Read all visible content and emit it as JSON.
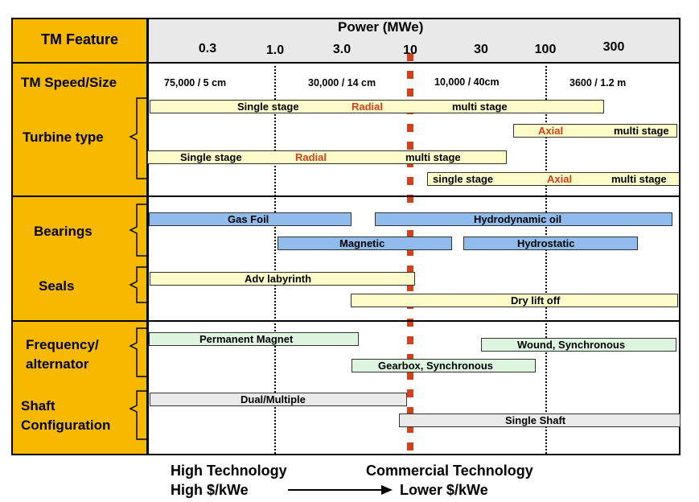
{
  "header": {
    "feature_label": "TM Feature",
    "power_label": "Power (MWe)",
    "ticks": [
      "0.3",
      "1.0",
      "3.0",
      "10",
      "30",
      "100",
      "300"
    ]
  },
  "rows": {
    "speed_label": "TM Speed/Size",
    "speeds": [
      "75,000 / 5 cm",
      "30,000 / 14 cm",
      "10,000 / 40cm",
      "3600 / 1.2 m"
    ],
    "turbine_label": "Turbine type",
    "bearings_label": "Bearings",
    "seals_label": "Seals",
    "frequency_label_1": "Frequency/",
    "frequency_label_2": "alternator",
    "shaft_label_1": "Shaft",
    "shaft_label_2": "Configuration"
  },
  "bars": {
    "t1_a": "Single stage",
    "t1_b": "Radial",
    "t1_c": "multi stage",
    "t2_a": "Axial",
    "t2_b": "multi stage",
    "t3_a": "Single stage",
    "t3_b": "Radial",
    "t3_c": "multi stage",
    "t4_a": "single stage",
    "t4_b": "Axial",
    "t4_c": "multi stage",
    "gas_foil": "Gas Foil",
    "hydrodynamic": "Hydrodynamic oil",
    "magnetic": "Magnetic",
    "hydrostatic": "Hydrostatic",
    "adv_labyrinth": "Adv labyrinth",
    "dry_lift": "Dry lift off",
    "perm_magnet": "Permanent Magnet",
    "wound": "Wound, Synchronous",
    "gearbox": "Gearbox, Synchronous",
    "dual": "Dual/Multiple",
    "single_shaft": "Single Shaft"
  },
  "footer": {
    "high_tech": "High Technology",
    "high_cost": "High $/kWe",
    "commercial_tech": "Commercial Technology",
    "lower_cost": "Lower $/kWe"
  },
  "colors": {
    "feature_column": "#f7b800",
    "accent_red": "#d2411b",
    "yellow_bar": "#fdfcc8",
    "blue_bar": "#8fbcec",
    "green_bar": "#def6e0",
    "gray_bar": "#eaeaea"
  }
}
